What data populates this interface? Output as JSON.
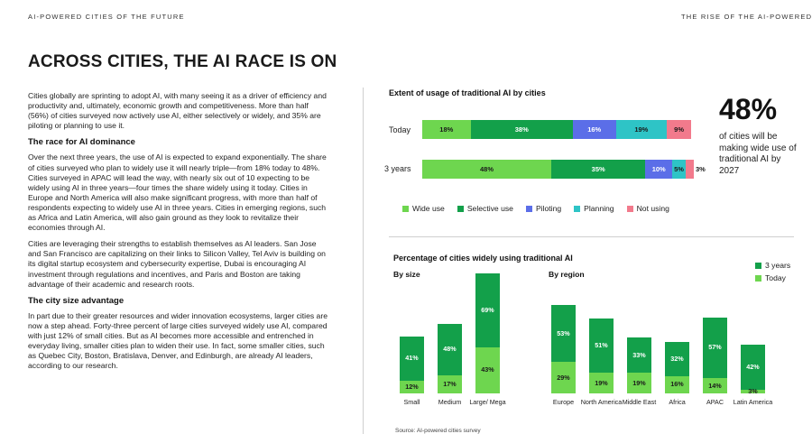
{
  "header": {
    "left": "AI-POWERED CITIES OF THE FUTURE",
    "right": "THE RISE OF THE AI-POWERED"
  },
  "title": "ACROSS CITIES, THE AI RACE IS ON",
  "body": {
    "p1": "Cities globally are sprinting to adopt AI, with many seeing it as a driver of efficiency and productivity and, ultimately, economic growth and competitiveness. More than half (56%) of cities surveyed now actively use AI, either selectively or widely, and 35% are piloting or planning to use it.",
    "h1": "The race for AI dominance",
    "p2": "Over the next three years, the use of AI is expected to expand exponentially. The share of cities surveyed who plan to widely use it will nearly triple—from 18% today to 48%. Cities surveyed in APAC will lead the way, with nearly six out of 10 expecting to be widely using AI in three years—four times the share widely using it today. Cities in Europe and North America will also make significant progress, with more than half of respondents expecting to widely use AI in three years. Cities in emerging regions, such as Africa and Latin America, will also gain ground as they look to revitalize their economies through AI.",
    "p3": "Cities are leveraging their strengths to establish themselves as AI leaders. San Jose and San Francisco are capitalizing on their links to Silicon Valley, Tel Aviv is building on its digital startup ecosystem and cybersecurity expertise, Dubai is encouraging AI investment through regulations and incentives, and Paris and Boston are taking advantage of their academic and research roots.",
    "h2": "The city size advantage",
    "p4": "In part due to their greater resources and wider innovation ecosystems, larger cities are now a step ahead. Forty-three percent of large cities surveyed widely use AI, compared with just 12% of small cities. But as AI becomes more accessible and entrenched in everyday living, smaller cities plan to widen their use. In fact, some smaller cities, such as Quebec City, Boston, Bratislava, Denver, and Edinburgh, are already AI leaders, according to our research."
  },
  "chart_data": [
    {
      "type": "bar",
      "orientation": "horizontal-stacked",
      "title": "Extent of usage of traditional AI by cities",
      "categories": [
        "Today",
        "3 years"
      ],
      "series": [
        {
          "name": "Wide use",
          "color": "#6ed64f",
          "values": [
            18,
            48
          ]
        },
        {
          "name": "Selective use",
          "color": "#13a04a",
          "values": [
            38,
            35
          ]
        },
        {
          "name": "Piloting",
          "color": "#5b6ee8",
          "values": [
            16,
            10
          ]
        },
        {
          "name": "Planning",
          "color": "#2ec4c6",
          "values": [
            19,
            5
          ]
        },
        {
          "name": "Not using",
          "color": "#f27a8c",
          "values": [
            9,
            3
          ]
        }
      ],
      "legend_position": "bottom"
    },
    {
      "type": "bar",
      "orientation": "vertical-stacked",
      "title": "Percentage of cities widely using traditional AI",
      "groups": [
        {
          "label": "By size",
          "categories": [
            "Small",
            "Medium",
            "Large/ Mega"
          ]
        },
        {
          "label": "By region",
          "categories": [
            "Europe",
            "North America",
            "Middle East",
            "Africa",
            "APAC",
            "Latin America"
          ]
        }
      ],
      "categories": [
        "Small",
        "Medium",
        "Large/ Mega",
        "Europe",
        "North America",
        "Middle East",
        "Africa",
        "APAC",
        "Latin America"
      ],
      "series": [
        {
          "name": "Today",
          "color": "#6ed64f",
          "values": [
            12,
            17,
            43,
            29,
            19,
            19,
            16,
            14,
            3
          ]
        },
        {
          "name": "3 years",
          "color": "#13a04a",
          "values": [
            41,
            48,
            69,
            53,
            51,
            33,
            32,
            57,
            42
          ]
        }
      ],
      "legend_position": "top-right"
    }
  ],
  "charts": {
    "legend_ordered": [
      "Wide use",
      "Selective use",
      "Piloting",
      "Planning",
      "Not using"
    ],
    "vlegend_ordered": [
      "3 years",
      "Today"
    ]
  },
  "callout": {
    "value": "48%",
    "caption": "of cities will be making wide use of traditional AI by 2027"
  },
  "source": "Source: AI-powered cities survey"
}
